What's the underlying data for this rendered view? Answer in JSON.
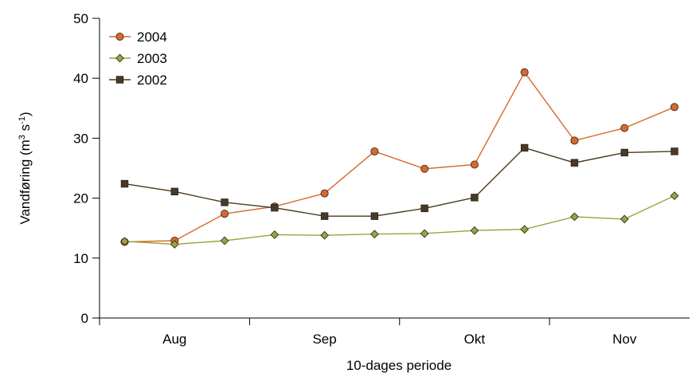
{
  "chart_data": {
    "type": "line",
    "xlabel": "10-dages periode",
    "ylabel": "Vandføring (m³ s⁻¹)",
    "ylabel_parts": {
      "base": "Vandføring (m",
      "sup1": "3",
      "mid": " s",
      "sup2": "-1",
      "end": ")"
    },
    "ylim": [
      0,
      50
    ],
    "yticks": [
      0,
      10,
      20,
      30,
      40,
      50
    ],
    "month_labels": [
      "Aug",
      "Sep",
      "Okt",
      "Nov"
    ],
    "points_per_month": 3,
    "grid": false,
    "legend_position": "top-left",
    "series": [
      {
        "name": "2004",
        "color": "#d8692a",
        "marker": "circle",
        "values": [
          12.7,
          12.9,
          17.4,
          18.6,
          20.8,
          27.8,
          24.9,
          25.6,
          41.0,
          29.6,
          31.7,
          35.2
        ]
      },
      {
        "name": "2003",
        "color": "#9aa53a",
        "marker": "diamond",
        "values": [
          12.8,
          12.3,
          12.9,
          13.9,
          13.8,
          14.0,
          14.1,
          14.6,
          14.8,
          16.9,
          16.5,
          20.4
        ]
      },
      {
        "name": "2002",
        "color": "#4a3a22",
        "marker": "square",
        "values": [
          22.4,
          21.1,
          19.3,
          18.4,
          17.0,
          17.0,
          18.3,
          20.1,
          28.4,
          25.9,
          27.6,
          27.8
        ]
      }
    ]
  }
}
